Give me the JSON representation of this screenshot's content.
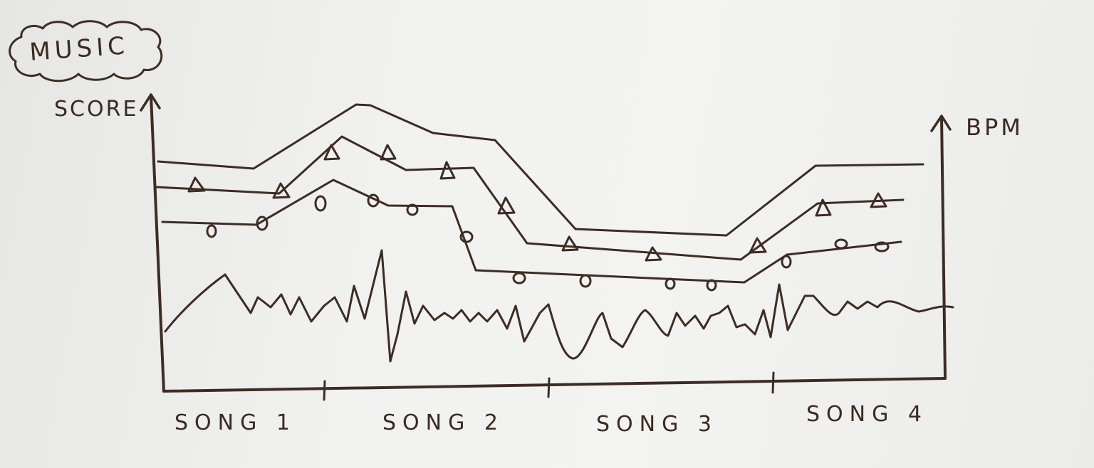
{
  "badge": {
    "label": "MUSIC"
  },
  "axes": {
    "left_label": "SCORE",
    "right_label": "BPM"
  },
  "x_labels": [
    "SONG 1",
    "SONG 2",
    "SONG 3",
    "SONG 4"
  ],
  "markers": {
    "triangle": "triangle-icon",
    "circle": "circle-icon"
  },
  "ink_color": "#3d2c24"
}
